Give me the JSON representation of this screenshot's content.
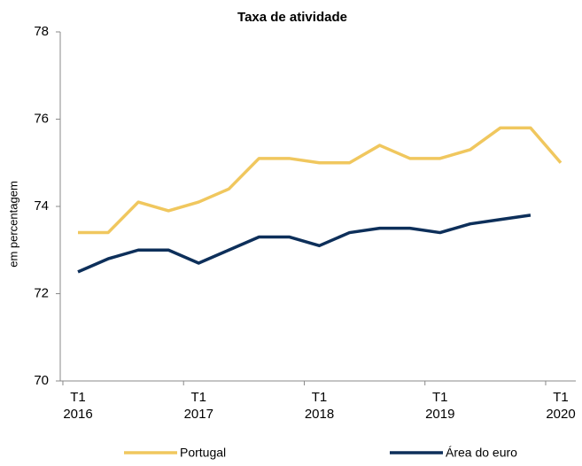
{
  "chart_data": {
    "type": "line",
    "title": "Taxa de atividade",
    "y_label": "em percentagem",
    "categories": [
      [
        "T1",
        "2016"
      ],
      null,
      null,
      null,
      [
        "T1",
        "2017"
      ],
      null,
      null,
      null,
      [
        "T1",
        "2018"
      ],
      null,
      null,
      null,
      [
        "T1",
        "2019"
      ],
      null,
      null,
      null,
      [
        "T1",
        "2020"
      ]
    ],
    "series": [
      {
        "name": "Portugal",
        "color": "#f0c75e",
        "values": [
          73.4,
          73.4,
          74.1,
          73.9,
          74.1,
          74.4,
          75.1,
          75.1,
          75.0,
          75.0,
          75.4,
          75.1,
          75.1,
          75.3,
          75.8,
          75.8,
          75.0
        ]
      },
      {
        "name": "Área do euro",
        "color": "#0d2f5a",
        "values": [
          72.5,
          72.8,
          73.0,
          73.0,
          72.7,
          73.0,
          73.3,
          73.3,
          73.1,
          73.4,
          73.5,
          73.5,
          73.4,
          73.6,
          73.7,
          73.8,
          null
        ]
      }
    ],
    "ylim": [
      70,
      78
    ],
    "yticks": [
      70,
      72,
      74,
      76,
      78
    ],
    "grid": false,
    "legend": "bottom"
  }
}
